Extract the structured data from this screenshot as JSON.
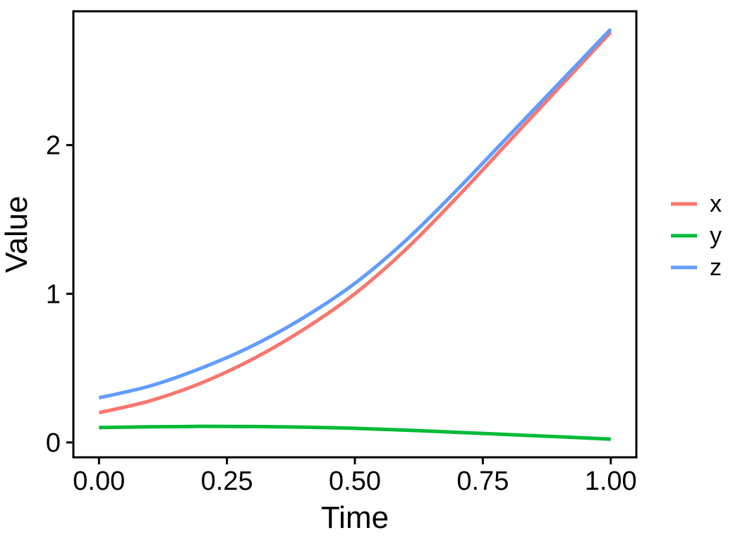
{
  "chart_data": {
    "type": "line",
    "title": "",
    "xlabel": "Time",
    "ylabel": "Value",
    "xlim": [
      -0.05,
      1.05
    ],
    "ylim": [
      -0.1,
      2.9
    ],
    "x_ticks": [
      0,
      0.25,
      0.5,
      0.75,
      1
    ],
    "x_tick_labels": [
      "0.00",
      "0.25",
      "0.50",
      "0.75",
      "1.00"
    ],
    "y_ticks": [
      0,
      1,
      2
    ],
    "y_tick_labels": [
      "0",
      "1",
      "2"
    ],
    "grid": false,
    "legend_position": "right",
    "x": [
      0,
      0.1,
      0.2,
      0.3,
      0.4,
      0.5,
      0.6,
      0.7,
      0.8,
      0.9,
      1.0
    ],
    "series": [
      {
        "name": "x",
        "color": "#F8766D",
        "values": [
          0.2,
          0.28,
          0.4,
          0.56,
          0.76,
          1.0,
          1.3,
          1.65,
          2.02,
          2.39,
          2.76
        ]
      },
      {
        "name": "y",
        "color": "#00BA38",
        "values": [
          0.1,
          0.105,
          0.108,
          0.107,
          0.103,
          0.095,
          0.083,
          0.068,
          0.053,
          0.038,
          0.022
        ]
      },
      {
        "name": "z",
        "color": "#619CFF",
        "values": [
          0.3,
          0.38,
          0.5,
          0.65,
          0.84,
          1.07,
          1.36,
          1.7,
          2.06,
          2.42,
          2.78
        ]
      }
    ]
  }
}
